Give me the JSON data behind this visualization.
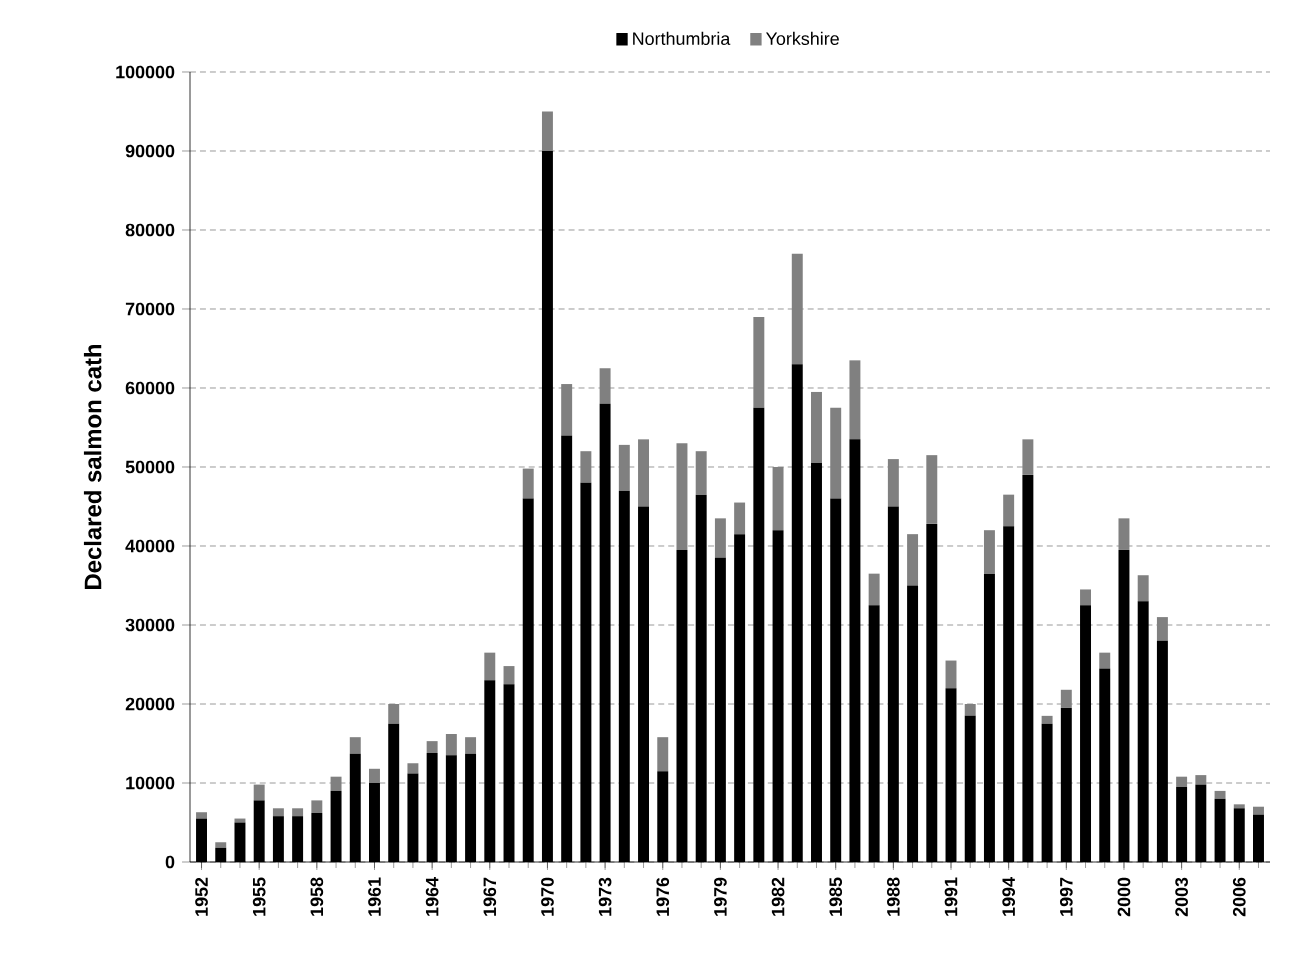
{
  "chart_data": {
    "type": "bar",
    "stacked": true,
    "ylabel": "Declared salmon cath",
    "categories": [
      "1952",
      null,
      null,
      "1955",
      null,
      null,
      "1958",
      null,
      null,
      "1961",
      null,
      null,
      "1964",
      null,
      null,
      "1967",
      null,
      null,
      "1970",
      null,
      null,
      "1973",
      null,
      null,
      "1976",
      null,
      null,
      "1979",
      null,
      null,
      "1982",
      null,
      null,
      "1985",
      null,
      null,
      "1988",
      null,
      null,
      "1991",
      null,
      null,
      "1994",
      null,
      null,
      "1997",
      null,
      null,
      "2000",
      null,
      null,
      "2003",
      null,
      null,
      "2006",
      null
    ],
    "series": [
      {
        "name": "Northumbria",
        "color": "#000000",
        "values": [
          5500,
          1800,
          5000,
          7800,
          5800,
          5800,
          6200,
          9000,
          13700,
          10000,
          17500,
          11200,
          13800,
          13500,
          13700,
          23000,
          22500,
          46000,
          90000,
          54000,
          48000,
          58000,
          47000,
          45000,
          11500,
          39500,
          46500,
          38500,
          41500,
          57500,
          42000,
          63000,
          50500,
          46000,
          53500,
          32500,
          45000,
          35000,
          42800,
          22000,
          18500,
          36500,
          42500,
          49000,
          17500,
          19500,
          32500,
          24500,
          39500,
          33000,
          28000,
          9500,
          9800,
          8000,
          6800,
          6000
        ]
      },
      {
        "name": "Yorkshire",
        "color": "#808080",
        "values": [
          800,
          700,
          500,
          2000,
          1000,
          1000,
          1600,
          1800,
          2100,
          1800,
          2500,
          1300,
          1500,
          2700,
          2100,
          3500,
          2300,
          3800,
          5000,
          6500,
          4000,
          4500,
          5800,
          8500,
          4300,
          13500,
          5500,
          5000,
          4000,
          11500,
          8000,
          14000,
          9000,
          11500,
          10000,
          4000,
          6000,
          6500,
          8700,
          3500,
          1500,
          5500,
          4000,
          4500,
          1000,
          2300,
          2000,
          2000,
          4000,
          3300,
          3000,
          1300,
          1200,
          1000,
          500,
          1000
        ]
      }
    ],
    "ylim": [
      0,
      100000
    ],
    "yticks": [
      0,
      10000,
      20000,
      30000,
      40000,
      50000,
      60000,
      70000,
      80000,
      90000,
      100000
    ],
    "grid": "y",
    "legend": "top"
  }
}
